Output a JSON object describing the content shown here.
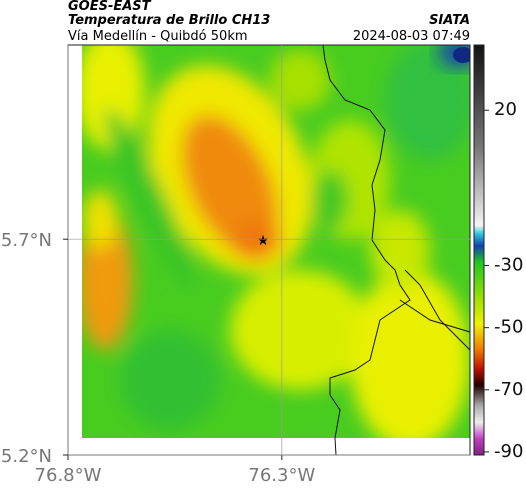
{
  "header": {
    "satellite": "GOES-EAST",
    "product": "Temperatura de Brillo CH13",
    "source": "SIATA",
    "region": "Vía Medellín - Quibdó 50km",
    "datetime": "2024-08-03 07:49"
  },
  "map": {
    "xlim": [
      -76.8,
      -75.86
    ],
    "ylim": [
      5.2,
      6.15
    ],
    "xticks": [
      {
        "value": -76.8,
        "label": "76.8°W"
      },
      {
        "value": -76.3,
        "label": "76.3°W"
      }
    ],
    "yticks": [
      {
        "value": 5.2,
        "label": "5.2°N"
      },
      {
        "value": 5.7,
        "label": "5.7°N"
      }
    ],
    "colorbar": {
      "lim": [
        -91,
        41
      ],
      "ticks": [
        20,
        -30,
        -50,
        -70,
        -90
      ]
    }
  }
}
